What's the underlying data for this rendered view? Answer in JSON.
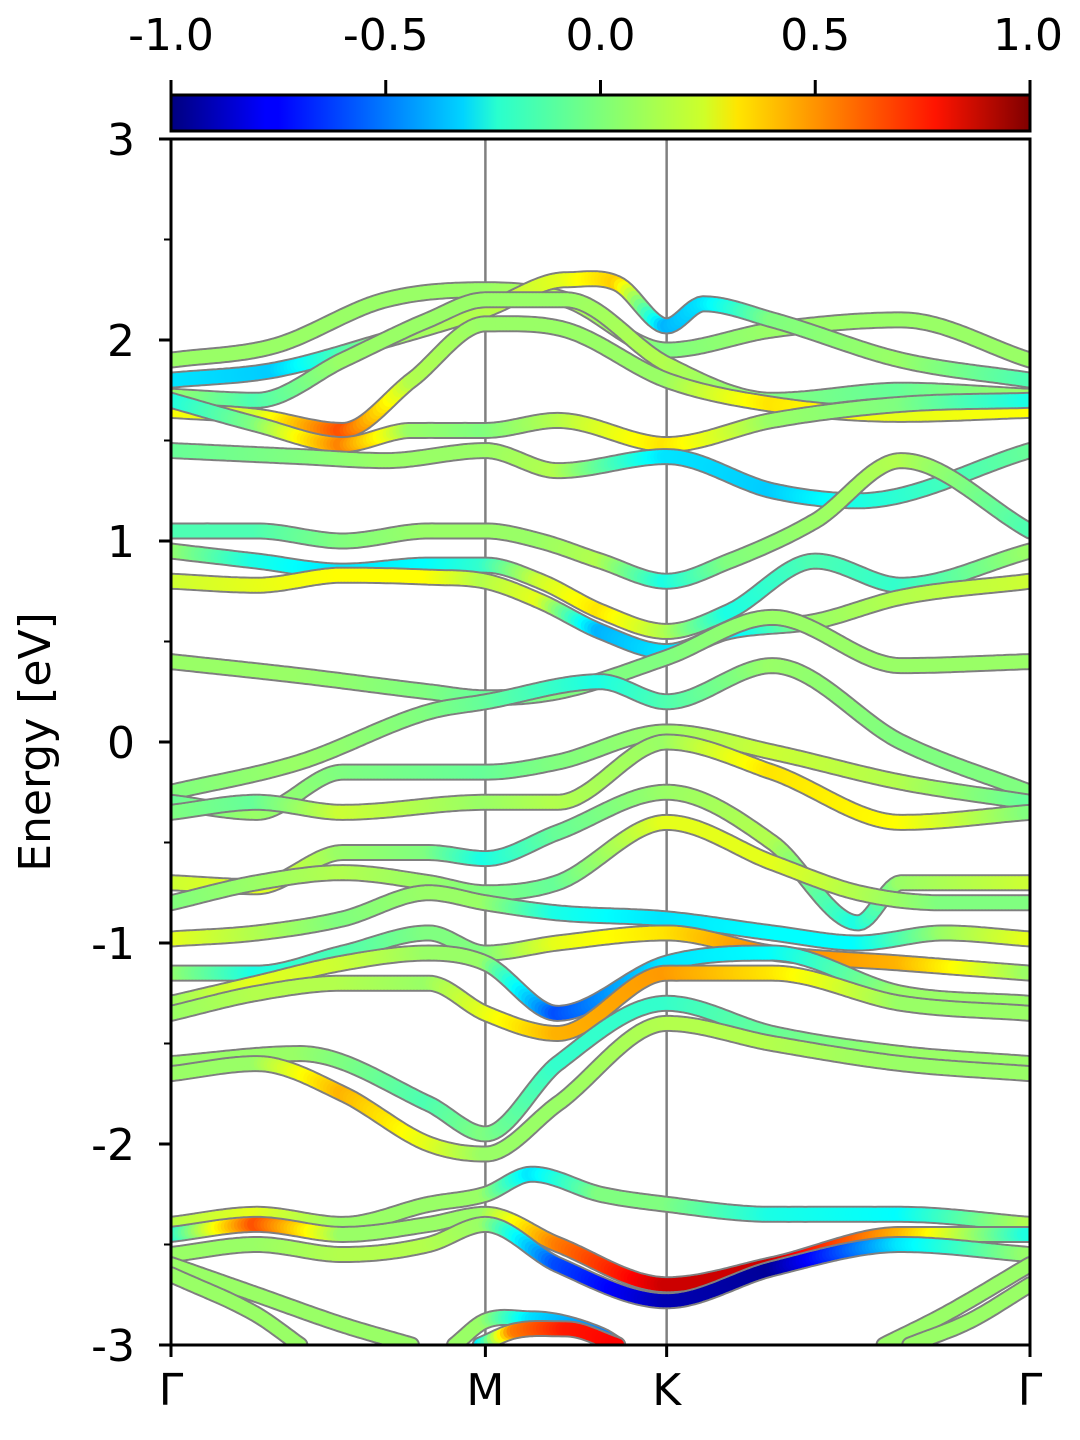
{
  "chart_data": {
    "type": "line",
    "ylabel": "Energy [eV]",
    "ylim": [
      -3,
      3
    ],
    "yticks": [
      {
        "value": 3,
        "label": "3"
      },
      {
        "value": 2,
        "label": "2"
      },
      {
        "value": 1,
        "label": "1"
      },
      {
        "value": 0,
        "label": "0"
      },
      {
        "value": -1,
        "label": "-1"
      },
      {
        "value": -2,
        "label": "-2"
      },
      {
        "value": -3,
        "label": "-3"
      }
    ],
    "yminor": [
      2.5,
      1.5,
      0.5,
      -0.5,
      -1.5,
      -2.5
    ],
    "xlim": [
      0,
      1
    ],
    "kpoints": [
      {
        "label": "Γ",
        "x": 0.0
      },
      {
        "label": "M",
        "x": 0.366
      },
      {
        "label": "K",
        "x": 0.577
      },
      {
        "label": "Γ",
        "x": 1.0
      }
    ],
    "colorbar": {
      "colormap": "jet",
      "range": [
        -1.0,
        1.0
      ],
      "ticks": [
        {
          "value": -1.0,
          "label": "-1.0"
        },
        {
          "value": -0.5,
          "label": "-0.5"
        },
        {
          "value": 0.0,
          "label": "0.0"
        },
        {
          "value": 0.5,
          "label": "0.5"
        },
        {
          "value": 1.0,
          "label": "1.0"
        }
      ]
    },
    "grid": false,
    "bands": [
      {
        "x": [
          0,
          0.12,
          0.25,
          0.366,
          0.46,
          0.577,
          0.7,
          0.85,
          1.0
        ],
        "y": [
          1.9,
          1.97,
          2.2,
          2.25,
          2.2,
          1.95,
          2.05,
          2.1,
          1.9
        ],
        "c": [
          0.05,
          0.05,
          0.05,
          0.05,
          0.1,
          0.0,
          0.05,
          0.05,
          0.05
        ]
      },
      {
        "x": [
          0,
          0.12,
          0.25,
          0.366,
          0.46,
          0.52,
          0.577,
          0.62,
          0.7,
          0.85,
          1.0
        ],
        "y": [
          1.8,
          1.85,
          2.0,
          2.15,
          2.3,
          2.28,
          2.07,
          2.18,
          2.1,
          1.9,
          1.8
        ],
        "c": [
          -0.3,
          -0.35,
          0.05,
          0.1,
          0.2,
          0.35,
          -0.4,
          -0.3,
          0.0,
          0.05,
          -0.1
        ]
      },
      {
        "x": [
          0,
          0.1,
          0.2,
          0.3,
          0.366,
          0.46,
          0.577,
          0.7,
          0.85,
          1.0
        ],
        "y": [
          1.72,
          1.7,
          1.9,
          2.1,
          2.2,
          2.2,
          1.88,
          1.7,
          1.75,
          1.72
        ],
        "c": [
          0.05,
          -0.1,
          0.05,
          0.05,
          0.05,
          0.05,
          0.1,
          0.0,
          -0.05,
          0.05
        ]
      },
      {
        "x": [
          0,
          0.1,
          0.2,
          0.28,
          0.366,
          0.46,
          0.577,
          0.7,
          0.85,
          1.0
        ],
        "y": [
          1.65,
          1.62,
          1.55,
          1.8,
          2.08,
          2.05,
          1.8,
          1.68,
          1.63,
          1.65
        ],
        "c": [
          0.25,
          0.15,
          0.6,
          0.1,
          0.05,
          0.05,
          0.05,
          0.3,
          0.2,
          0.25
        ]
      },
      {
        "x": [
          0,
          0.1,
          0.2,
          0.28,
          0.366,
          0.45,
          0.577,
          0.7,
          0.85,
          1.0
        ],
        "y": [
          1.7,
          1.58,
          1.48,
          1.55,
          1.55,
          1.6,
          1.48,
          1.6,
          1.68,
          1.7
        ],
        "c": [
          -0.2,
          0.0,
          0.5,
          0.05,
          0.0,
          0.1,
          0.3,
          0.05,
          0.0,
          -0.2
        ]
      },
      {
        "x": [
          0,
          0.15,
          0.25,
          0.366,
          0.45,
          0.577,
          0.7,
          0.8,
          1.0
        ],
        "y": [
          1.45,
          1.42,
          1.4,
          1.45,
          1.35,
          1.42,
          1.25,
          1.2,
          1.45
        ],
        "c": [
          -0.05,
          0.0,
          0.05,
          0.05,
          0.1,
          -0.3,
          -0.35,
          -0.2,
          -0.05
        ]
      },
      {
        "x": [
          0,
          0.1,
          0.2,
          0.3,
          0.366,
          0.43,
          0.5,
          0.577,
          0.65,
          0.75,
          0.85,
          1.0
        ],
        "y": [
          1.05,
          1.05,
          1.0,
          1.05,
          1.05,
          1.0,
          0.9,
          0.8,
          0.9,
          1.1,
          1.4,
          1.05
        ],
        "c": [
          -0.1,
          -0.1,
          0.0,
          0.05,
          0.05,
          0.05,
          0.1,
          -0.2,
          0.0,
          0.05,
          0.1,
          -0.1
        ]
      },
      {
        "x": [
          0,
          0.1,
          0.2,
          0.3,
          0.366,
          0.43,
          0.5,
          0.577,
          0.65,
          0.75,
          0.85,
          1.0
        ],
        "y": [
          0.95,
          0.9,
          0.85,
          0.88,
          0.88,
          0.8,
          0.65,
          0.55,
          0.65,
          0.9,
          0.78,
          0.95
        ],
        "c": [
          0.05,
          -0.2,
          -0.3,
          -0.25,
          -0.15,
          0.15,
          0.3,
          0.1,
          -0.2,
          -0.1,
          -0.15,
          0.05
        ]
      },
      {
        "x": [
          0,
          0.1,
          0.2,
          0.3,
          0.366,
          0.43,
          0.5,
          0.577,
          0.65,
          0.75,
          0.85,
          1.0
        ],
        "y": [
          0.8,
          0.78,
          0.83,
          0.82,
          0.8,
          0.7,
          0.55,
          0.45,
          0.55,
          0.6,
          0.72,
          0.8
        ],
        "c": [
          0.15,
          0.2,
          0.25,
          0.25,
          0.1,
          0.2,
          -0.4,
          -0.3,
          -0.3,
          0.05,
          0.1,
          0.15
        ]
      },
      {
        "x": [
          0,
          0.15,
          0.3,
          0.366,
          0.45,
          0.577,
          0.7,
          0.85,
          1.0
        ],
        "y": [
          0.4,
          0.33,
          0.25,
          0.22,
          0.25,
          0.42,
          0.62,
          0.38,
          0.4
        ],
        "c": [
          0.05,
          0.05,
          0.0,
          -0.05,
          0.0,
          0.0,
          0.05,
          0.05,
          0.05
        ]
      },
      {
        "x": [
          0,
          0.15,
          0.3,
          0.366,
          0.5,
          0.577,
          0.7,
          0.85,
          1.0
        ],
        "y": [
          -0.25,
          -0.1,
          0.15,
          0.2,
          0.3,
          0.2,
          0.38,
          0.0,
          -0.25
        ],
        "c": [
          0.0,
          0.05,
          0.0,
          -0.05,
          -0.2,
          -0.1,
          0.05,
          0.0,
          0.0
        ]
      },
      {
        "x": [
          0,
          0.1,
          0.2,
          0.366,
          0.45,
          0.577,
          0.7,
          0.85,
          1.0
        ],
        "y": [
          -0.3,
          -0.35,
          -0.15,
          -0.15,
          -0.1,
          0.05,
          -0.05,
          -0.2,
          -0.3
        ],
        "c": [
          -0.05,
          0.05,
          0.0,
          -0.05,
          0.0,
          0.05,
          0.15,
          0.1,
          -0.05
        ]
      },
      {
        "x": [
          0,
          0.1,
          0.2,
          0.366,
          0.45,
          0.577,
          0.7,
          0.85,
          1.0
        ],
        "y": [
          -0.35,
          -0.3,
          -0.35,
          -0.3,
          -0.3,
          0.0,
          -0.15,
          -0.4,
          -0.35
        ],
        "c": [
          0.0,
          -0.05,
          0.15,
          0.05,
          0.1,
          0.05,
          0.3,
          0.25,
          0.0
        ]
      },
      {
        "x": [
          0,
          0.1,
          0.2,
          0.3,
          0.366,
          0.45,
          0.577,
          0.7,
          0.8,
          0.85,
          1.0
        ],
        "y": [
          -0.7,
          -0.72,
          -0.55,
          -0.55,
          -0.58,
          -0.45,
          -0.25,
          -0.5,
          -0.9,
          -0.7,
          -0.7
        ],
        "c": [
          0.15,
          0.2,
          0.05,
          0.0,
          -0.2,
          -0.05,
          0.05,
          0.1,
          -0.2,
          0.05,
          0.15
        ]
      },
      {
        "x": [
          0,
          0.1,
          0.2,
          0.3,
          0.366,
          0.45,
          0.577,
          0.7,
          0.8,
          0.9,
          1.0
        ],
        "y": [
          -0.8,
          -0.7,
          -0.65,
          -0.7,
          -0.75,
          -0.7,
          -0.4,
          -0.6,
          -0.75,
          -0.8,
          -0.8
        ],
        "c": [
          0.0,
          0.05,
          0.1,
          0.05,
          0.0,
          -0.05,
          0.2,
          0.2,
          0.1,
          0.0,
          0.0
        ]
      },
      {
        "x": [
          0,
          0.1,
          0.2,
          0.3,
          0.366,
          0.45,
          0.577,
          0.7,
          0.8,
          0.9,
          1.0
        ],
        "y": [
          -0.98,
          -0.95,
          -0.88,
          -0.75,
          -0.8,
          -0.85,
          -0.88,
          -0.95,
          -1.0,
          -0.95,
          -0.98
        ],
        "c": [
          0.2,
          0.1,
          0.0,
          0.05,
          0.05,
          -0.2,
          -0.3,
          -0.25,
          -0.25,
          0.05,
          0.2
        ]
      },
      {
        "x": [
          0,
          0.1,
          0.2,
          0.3,
          0.366,
          0.45,
          0.577,
          0.7,
          0.85,
          1.0
        ],
        "y": [
          -1.15,
          -1.15,
          -1.05,
          -0.95,
          -1.05,
          -1.0,
          -0.95,
          -1.05,
          -1.1,
          -1.15
        ],
        "c": [
          0.05,
          -0.2,
          -0.1,
          0.0,
          0.0,
          0.2,
          0.3,
          0.5,
          0.4,
          0.05
        ]
      },
      {
        "x": [
          0,
          0.1,
          0.2,
          0.3,
          0.366,
          0.45,
          0.577,
          0.7,
          0.85,
          1.0
        ],
        "y": [
          -1.3,
          -1.2,
          -1.1,
          -1.05,
          -1.1,
          -1.35,
          -1.1,
          -1.05,
          -1.25,
          -1.3
        ],
        "c": [
          0.05,
          0.2,
          0.15,
          0.05,
          0.05,
          -0.6,
          -0.3,
          -0.25,
          0.05,
          0.05
        ]
      },
      {
        "x": [
          0,
          0.1,
          0.2,
          0.3,
          0.366,
          0.45,
          0.577,
          0.7,
          0.85,
          1.0
        ],
        "y": [
          -1.35,
          -1.25,
          -1.2,
          -1.2,
          -1.35,
          -1.45,
          -1.15,
          -1.15,
          -1.3,
          -1.35
        ],
        "c": [
          0.05,
          0.1,
          0.1,
          0.05,
          0.2,
          0.4,
          0.45,
          0.3,
          0.05,
          0.05
        ]
      },
      {
        "x": [
          0,
          0.15,
          0.3,
          0.366,
          0.45,
          0.577,
          0.7,
          0.85,
          1.0
        ],
        "y": [
          -1.6,
          -1.55,
          -1.8,
          -1.95,
          -1.6,
          -1.3,
          -1.45,
          -1.55,
          -1.6
        ],
        "c": [
          0.05,
          0.05,
          -0.1,
          0.0,
          -0.15,
          -0.15,
          -0.05,
          0.05,
          0.05
        ]
      },
      {
        "x": [
          0,
          0.1,
          0.2,
          0.3,
          0.366,
          0.45,
          0.577,
          0.7,
          0.85,
          1.0
        ],
        "y": [
          -1.65,
          -1.6,
          -1.75,
          -2.0,
          -2.05,
          -1.8,
          -1.4,
          -1.5,
          -1.6,
          -1.65
        ],
        "c": [
          0.05,
          0.05,
          0.4,
          0.2,
          0.05,
          0.05,
          0.1,
          0.1,
          0.05,
          0.05
        ]
      },
      {
        "x": [
          0,
          0.1,
          0.2,
          0.3,
          0.366,
          0.42,
          0.5,
          0.577,
          0.7,
          0.85,
          1.0
        ],
        "y": [
          -2.4,
          -2.35,
          -2.4,
          -2.3,
          -2.25,
          -2.15,
          -2.25,
          -2.3,
          -2.35,
          -2.35,
          -2.4
        ],
        "c": [
          0.1,
          0.2,
          0.05,
          0.05,
          0.05,
          -0.3,
          0.0,
          0.0,
          -0.2,
          -0.25,
          0.1
        ]
      },
      {
        "x": [
          0,
          0.1,
          0.2,
          0.3,
          0.366,
          0.45,
          0.577,
          0.7,
          0.85,
          1.0
        ],
        "y": [
          -2.45,
          -2.4,
          -2.45,
          -2.4,
          -2.35,
          -2.5,
          -2.7,
          -2.6,
          -2.45,
          -2.45
        ],
        "c": [
          -0.2,
          0.6,
          0.05,
          0.05,
          0.05,
          0.5,
          0.85,
          0.85,
          0.4,
          -0.2
        ]
      },
      {
        "x": [
          0,
          0.1,
          0.2,
          0.3,
          0.366,
          0.45,
          0.577,
          0.7,
          0.85,
          1.0
        ],
        "y": [
          -2.55,
          -2.5,
          -2.55,
          -2.5,
          -2.4,
          -2.6,
          -2.78,
          -2.62,
          -2.5,
          -2.55
        ],
        "c": [
          0.05,
          0.05,
          0.1,
          0.1,
          0.05,
          -0.6,
          -0.9,
          -0.95,
          -0.3,
          0.05
        ]
      },
      {
        "x": [
          0,
          0.1,
          0.2,
          0.28
        ],
        "y": [
          -2.6,
          -2.75,
          -2.9,
          -3.0
        ],
        "c": [
          0.05,
          0.05,
          0.05,
          0.05
        ]
      },
      {
        "x": [
          0,
          0.1,
          0.15
        ],
        "y": [
          -2.65,
          -2.85,
          -3.0
        ],
        "c": [
          0.05,
          0.05,
          0.05
        ]
      },
      {
        "x": [
          0.83,
          0.9,
          1.0
        ],
        "y": [
          -3.0,
          -2.85,
          -2.6
        ],
        "c": [
          0.05,
          0.05,
          0.05
        ]
      },
      {
        "x": [
          0.86,
          0.93,
          1.0
        ],
        "y": [
          -3.0,
          -2.88,
          -2.7
        ],
        "c": [
          0.05,
          0.05,
          0.05
        ]
      },
      {
        "x": [
          0.33,
          0.366,
          0.42,
          0.5,
          0.52
        ],
        "y": [
          -3.0,
          -2.88,
          -2.87,
          -2.95,
          -3.0
        ],
        "c": [
          0.05,
          0.05,
          -0.3,
          -0.5,
          -0.5
        ]
      },
      {
        "x": [
          0.36,
          0.4,
          0.46,
          0.52
        ],
        "y": [
          -3.0,
          -2.93,
          -2.92,
          -3.0
        ],
        "c": [
          -0.3,
          0.5,
          0.7,
          0.75
        ]
      }
    ]
  }
}
